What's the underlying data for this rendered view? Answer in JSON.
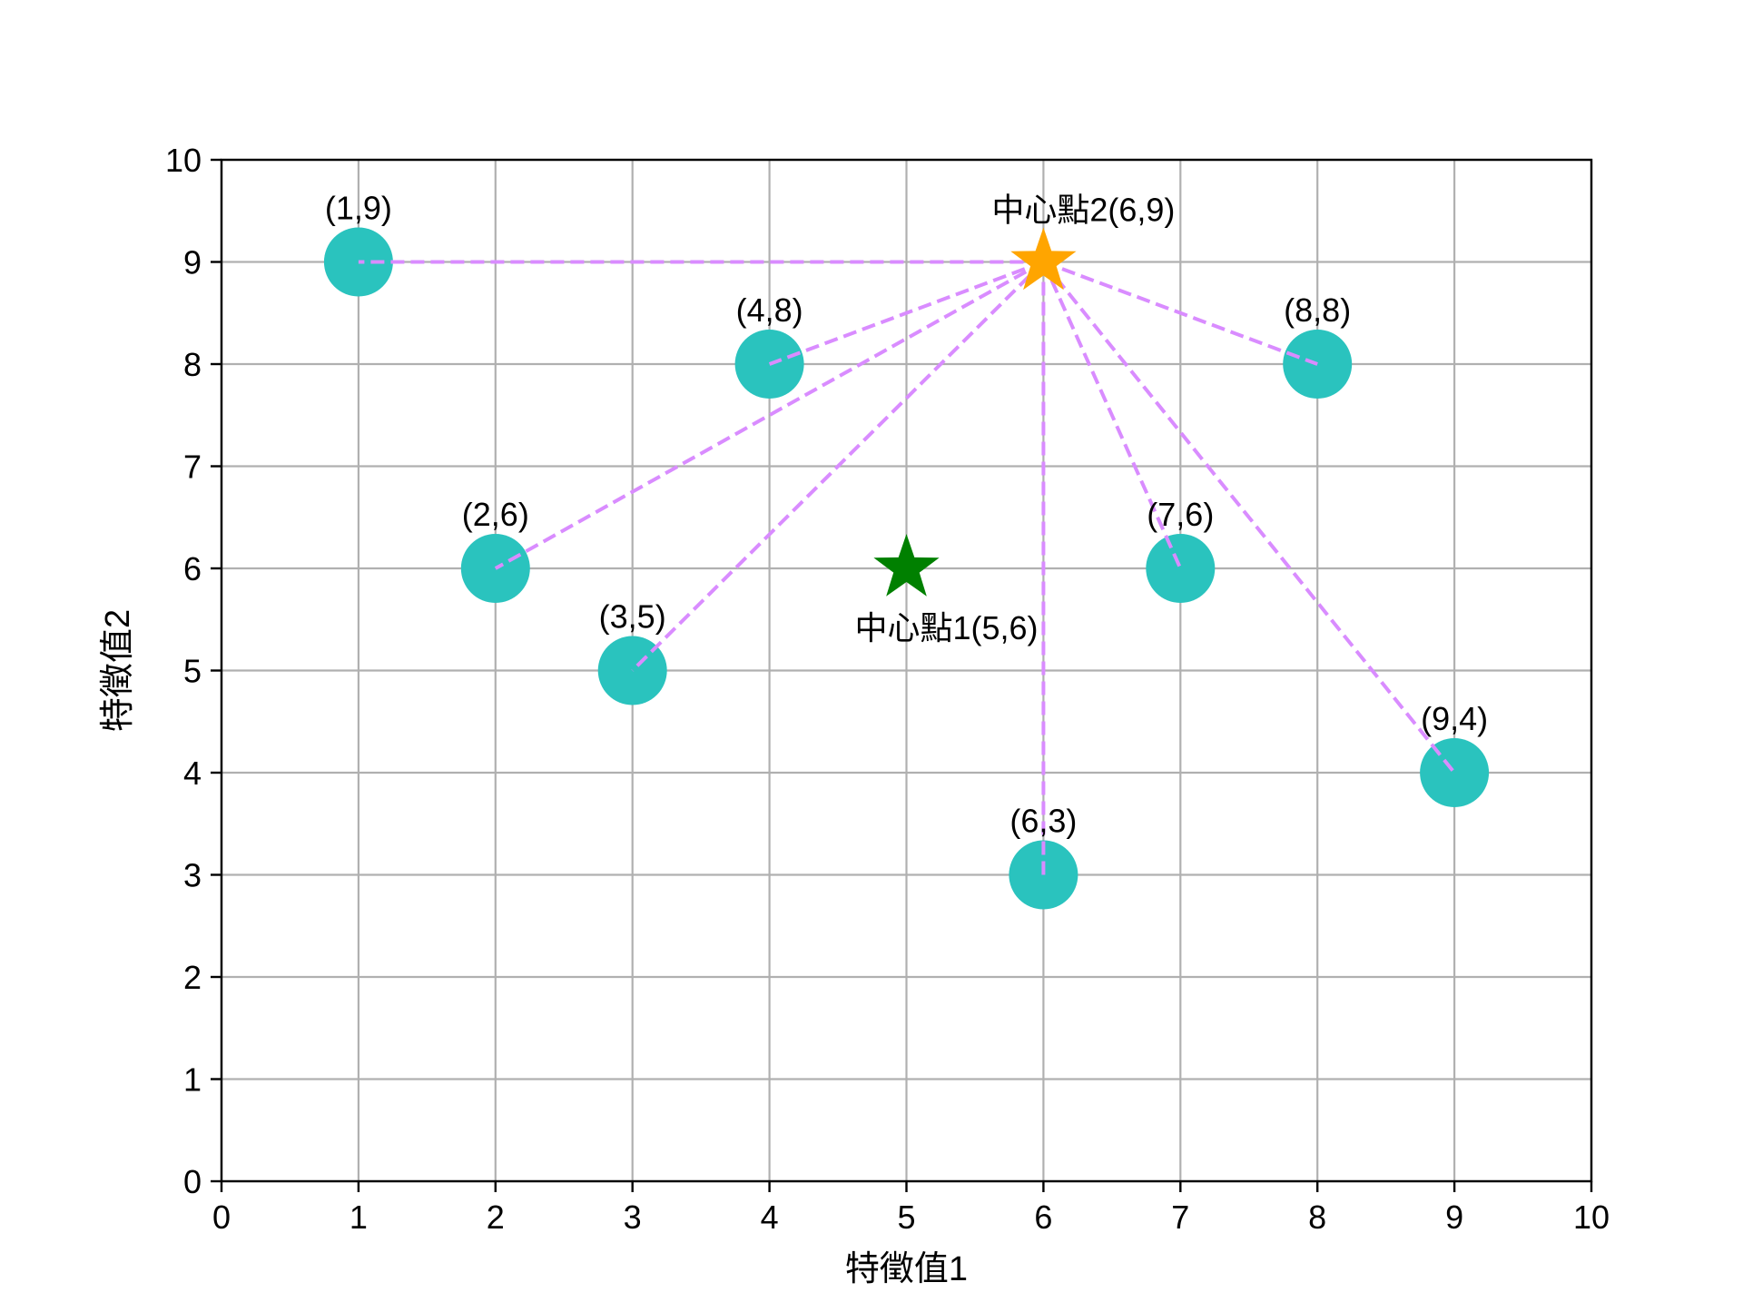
{
  "chart_data": {
    "type": "scatter",
    "xlabel": "特徵值1",
    "ylabel": "特徵值2",
    "xlim": [
      0,
      10
    ],
    "ylim": [
      0,
      10
    ],
    "xticks": [
      0,
      1,
      2,
      3,
      4,
      5,
      6,
      7,
      8,
      9,
      10
    ],
    "yticks": [
      0,
      1,
      2,
      3,
      4,
      5,
      6,
      7,
      8,
      9,
      10
    ],
    "grid": true,
    "points": [
      {
        "x": 1,
        "y": 9,
        "label": "(1,9)"
      },
      {
        "x": 2,
        "y": 6,
        "label": "(2,6)"
      },
      {
        "x": 3,
        "y": 5,
        "label": "(3,5)"
      },
      {
        "x": 4,
        "y": 8,
        "label": "(4,8)"
      },
      {
        "x": 6,
        "y": 3,
        "label": "(6,3)"
      },
      {
        "x": 7,
        "y": 6,
        "label": "(7,6)"
      },
      {
        "x": 8,
        "y": 8,
        "label": "(8,8)"
      },
      {
        "x": 9,
        "y": 4,
        "label": "(9,4)"
      }
    ],
    "centers": [
      {
        "x": 5,
        "y": 6,
        "label": "中心點1(5,6)",
        "color": "#008000",
        "label_position": "below"
      },
      {
        "x": 6,
        "y": 9,
        "label": "中心點2(6,9)",
        "color": "#FFA500",
        "label_position": "above"
      }
    ],
    "connections": {
      "from_center": 1,
      "color": "#D98CFF",
      "style": "dashed"
    },
    "colors": {
      "point": "#2AC3BE",
      "grid": "#B0B0B0",
      "axis": "#000000"
    }
  }
}
